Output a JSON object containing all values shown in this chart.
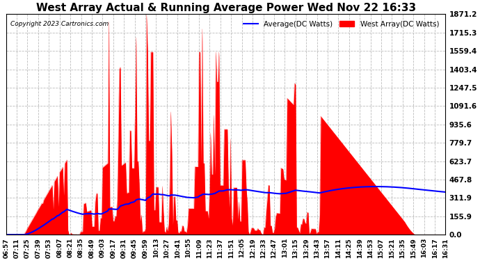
{
  "title": "West Array Actual & Running Average Power Wed Nov 22 16:33",
  "copyright": "Copyright 2023 Cartronics.com",
  "legend_average": "Average(DC Watts)",
  "legend_west": "West Array(DC Watts)",
  "yticks": [
    0.0,
    155.9,
    311.9,
    467.8,
    623.7,
    779.7,
    935.6,
    1091.6,
    1247.5,
    1403.4,
    1559.4,
    1715.3,
    1871.2
  ],
  "ymax": 1871.2,
  "xtick_labels": [
    "06:57",
    "07:11",
    "07:25",
    "07:39",
    "07:53",
    "08:07",
    "08:21",
    "08:35",
    "08:49",
    "09:03",
    "09:17",
    "09:31",
    "09:45",
    "09:59",
    "10:13",
    "10:27",
    "10:41",
    "10:55",
    "11:09",
    "11:23",
    "11:37",
    "11:51",
    "12:05",
    "12:19",
    "12:33",
    "12:47",
    "13:01",
    "13:15",
    "13:29",
    "13:43",
    "13:57",
    "14:11",
    "14:25",
    "14:39",
    "14:53",
    "15:07",
    "15:21",
    "15:35",
    "15:49",
    "16:03",
    "16:17",
    "16:31"
  ],
  "background_color": "#ffffff",
  "plot_bg_color": "#ffffff",
  "grid_color": "#bbbbbb",
  "bar_color": "#ff0000",
  "line_color": "#0000ff",
  "title_color": "#000000",
  "copyright_color": "#000000",
  "legend_avg_color": "#0000ff",
  "legend_west_color": "#ff0000",
  "title_fontsize": 11,
  "copyright_fontsize": 6.5,
  "ytick_fontsize": 7.5,
  "xtick_fontsize": 6.5
}
